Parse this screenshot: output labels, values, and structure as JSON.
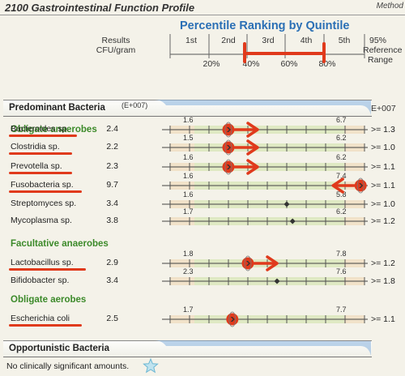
{
  "header": {
    "title": "2100 Gastrointestinal Function Profile",
    "method": "Method",
    "results_label_line1": "Results",
    "results_label_line2": "CFU/gram",
    "percentile_title": "Percentile Ranking by Quintile",
    "quintiles": [
      "1st",
      "2nd",
      "3rd",
      "4th",
      "5th"
    ],
    "percentiles": [
      "20%",
      "40%",
      "60%",
      "80%"
    ],
    "ref_line1": "95%",
    "ref_line2": "Reference",
    "ref_line3": "Range"
  },
  "predominant": {
    "title": "Predominant Bacteria",
    "exponent": "(E+007)",
    "exponent_right": "E+007"
  },
  "groups": [
    {
      "title": "Obligate anaerobes",
      "rows": [
        {
          "name": "Bacteroides sp.",
          "result": "2.4",
          "low": "1.6",
          "high": "6.7",
          "ref": ">= 1.3",
          "underlined": true,
          "pos": 0.3,
          "arrow": "right"
        },
        {
          "name": "Clostridia sp.",
          "result": "2.2",
          "low": "1.5",
          "high": "6.2",
          "ref": ">= 1.0",
          "underlined": true,
          "pos": 0.3,
          "arrow": "right"
        },
        {
          "name": "Prevotella sp.",
          "result": "2.3",
          "low": "1.6",
          "high": "6.2",
          "ref": ">= 1.1",
          "underlined": true,
          "pos": 0.3,
          "arrow": "right"
        },
        {
          "name": "Fusobacteria sp.",
          "result": "9.7",
          "low": "1.6",
          "high": "7.4",
          "ref": ">= 1.1",
          "underlined": true,
          "pos": 0.98,
          "arrow": "left"
        },
        {
          "name": "Streptomyces sp.",
          "result": "3.4",
          "low": "1.6",
          "high": "5.8",
          "ref": ">= 1.0",
          "underlined": false,
          "pos": 0.6,
          "arrow": "none"
        },
        {
          "name": "Mycoplasma sp.",
          "result": "3.8",
          "low": "1.7",
          "high": "6.2",
          "ref": ">= 1.2",
          "underlined": false,
          "pos": 0.63,
          "arrow": "none"
        }
      ]
    },
    {
      "title": "Facultative anaerobes",
      "rows": [
        {
          "name": "Lactobacillus sp.",
          "result": "2.9",
          "low": "1.8",
          "high": "7.8",
          "ref": ">= 1.2",
          "underlined": true,
          "pos": 0.4,
          "arrow": "right"
        },
        {
          "name": "Bifidobacter sp.",
          "result": "3.4",
          "low": "2.3",
          "high": "7.6",
          "ref": ">= 1.8",
          "underlined": false,
          "pos": 0.55,
          "arrow": "none"
        }
      ]
    },
    {
      "title": "Obligate aerobes",
      "rows": [
        {
          "name": "Escherichia coli",
          "result": "2.5",
          "low": "1.7",
          "high": "7.7",
          "ref": ">= 1.1",
          "underlined": true,
          "pos": 0.32,
          "arrow": "none"
        }
      ]
    }
  ],
  "opportunistic": {
    "title": "Opportunistic Bacteria",
    "note": "No clinically significant amounts."
  }
}
